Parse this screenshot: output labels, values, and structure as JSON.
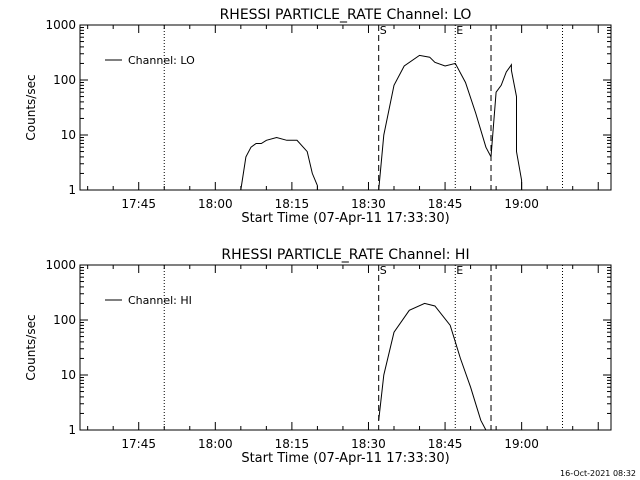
{
  "chart_data": [
    {
      "type": "line",
      "title": "RHESSI PARTICLE_RATE Channel: LO",
      "xlabel": "Start Time (07-Apr-11 17:33:30)",
      "ylabel": "Counts/sec",
      "yscale": "log",
      "ylim": [
        1,
        1000
      ],
      "xlim_minutes_since_start": [
        0,
        104
      ],
      "x_tick_labels": [
        "17:45",
        "18:00",
        "18:15",
        "18:30",
        "18:45",
        "19:00"
      ],
      "y_tick_labels": [
        "1",
        "10",
        "100",
        "1000"
      ],
      "legend": {
        "label": "Channel: LO",
        "placement": "top-left"
      },
      "markers": {
        "start": "S",
        "end": "E"
      },
      "dotted_lines_time": [
        "17:50",
        "18:47",
        "19:08"
      ],
      "dashed_lines_time": [
        "18:32",
        "18:54"
      ],
      "series": [
        {
          "name": "Channel: LO",
          "time": [
            "18:05",
            "18:06",
            "18:07",
            "18:08",
            "18:09",
            "18:10",
            "18:12",
            "18:14",
            "18:16",
            "18:18",
            "18:19",
            "18:20",
            "18:20",
            "18:32",
            "18:33",
            "18:35",
            "18:37",
            "18:40",
            "18:42",
            "18:43",
            "18:45",
            "18:47",
            "18:49",
            "18:51",
            "18:53",
            "18:54",
            "18:55",
            "18:56",
            "18:57",
            "18:58",
            "18:58",
            "18:59",
            "18:59",
            "19:00",
            "19:00"
          ],
          "values": [
            1,
            4,
            6,
            7,
            7,
            8,
            9,
            8,
            8,
            5,
            2,
            1.2,
            1,
            1,
            10,
            80,
            180,
            280,
            260,
            210,
            180,
            200,
            90,
            25,
            6,
            4,
            60,
            80,
            140,
            190,
            150,
            50,
            5,
            1.5,
            1
          ]
        }
      ]
    },
    {
      "type": "line",
      "title": "RHESSI PARTICLE_RATE Channel: HI",
      "xlabel": "Start Time (07-Apr-11 17:33:30)",
      "ylabel": "Counts/sec",
      "yscale": "log",
      "ylim": [
        1,
        1000
      ],
      "xlim_minutes_since_start": [
        0,
        104
      ],
      "x_tick_labels": [
        "17:45",
        "18:00",
        "18:15",
        "18:30",
        "18:45",
        "19:00"
      ],
      "y_tick_labels": [
        "1",
        "10",
        "100",
        "1000"
      ],
      "legend": {
        "label": "Channel: HI",
        "placement": "top-left"
      },
      "markers": {
        "start": "S",
        "end": "E"
      },
      "dotted_lines_time": [
        "17:50",
        "18:47",
        "19:08"
      ],
      "dashed_lines_time": [
        "18:32",
        "18:54"
      ],
      "series": [
        {
          "name": "Channel: HI",
          "time": [
            "18:32",
            "18:33",
            "18:35",
            "18:38",
            "18:41",
            "18:43",
            "18:46",
            "18:48",
            "18:50",
            "18:51",
            "18:52",
            "18:53"
          ],
          "values": [
            1.5,
            10,
            60,
            150,
            200,
            180,
            80,
            20,
            6,
            3,
            1.5,
            1
          ]
        }
      ]
    }
  ],
  "footer": {
    "timestamp": "16-Oct-2021 08:32"
  }
}
